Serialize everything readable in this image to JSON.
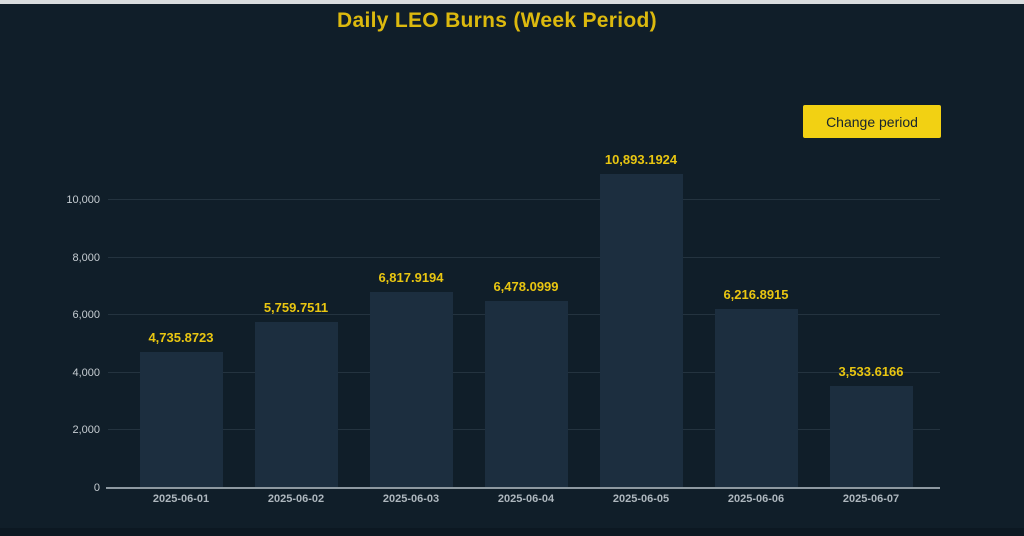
{
  "page": {
    "title": "Daily LEO Burns (Week Period)",
    "change_period_button": "Change period"
  },
  "colors": {
    "background": "#101e29",
    "accent_yellow": "#dcb90e",
    "button_yellow": "#f2d113",
    "button_text": "#17242f",
    "bar_fill": "#1c2e3f",
    "value_label": "#e9c611",
    "axis_label": "#c6cdd2",
    "axis_line": "#8e99a1"
  },
  "chart_data": {
    "type": "bar",
    "title": "Daily LEO Burns (Week Period)",
    "xlabel": "",
    "ylabel": "",
    "grid": true,
    "legend": false,
    "ylim": [
      0,
      10000
    ],
    "categories": [
      "2025-06-01",
      "2025-06-02",
      "2025-06-03",
      "2025-06-04",
      "2025-06-05",
      "2025-06-06",
      "2025-06-07"
    ],
    "values": [
      4735.8723,
      5759.7511,
      6817.9194,
      6478.0999,
      10893.1924,
      6216.8915,
      3533.6166
    ],
    "value_labels": [
      "4,735.8723",
      "5,759.7511",
      "6,817.9194",
      "6,478.0999",
      "10,893.1924",
      "6,216.8915",
      "3,533.6166"
    ],
    "y_ticks": [
      0,
      2000,
      4000,
      6000,
      8000,
      10000
    ],
    "y_tick_labels": [
      "0",
      "2,000",
      "4,000",
      "6,000",
      "8,000",
      "10,000"
    ]
  }
}
